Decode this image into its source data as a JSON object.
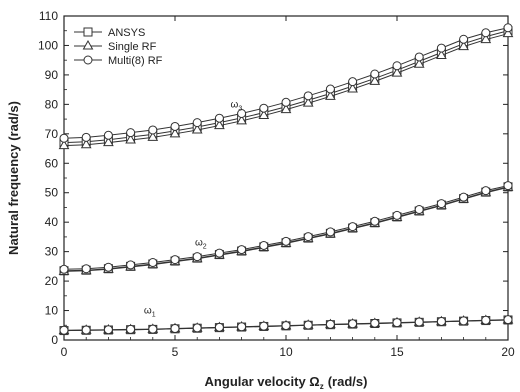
{
  "chart_data": {
    "type": "line",
    "xlabel": "Angular velocity Ω",
    "xlabel_sub": "z",
    "xlabel_unit": "(rad/s)",
    "ylabel": "Natural frequency (rad/s)",
    "xlim": [
      0,
      20
    ],
    "ylim": [
      0,
      110
    ],
    "xticks": [
      0,
      5,
      10,
      15,
      20
    ],
    "yticks": [
      0,
      10,
      20,
      30,
      40,
      50,
      60,
      70,
      80,
      90,
      100,
      110
    ],
    "grid": false,
    "legend_position": "top-left",
    "x": [
      0,
      1,
      2,
      3,
      4,
      5,
      6,
      7,
      8,
      9,
      10,
      11,
      12,
      13,
      14,
      15,
      16,
      17,
      18,
      19,
      20
    ],
    "series": [
      {
        "name": "ANSYS",
        "marker": "square",
        "groups": [
          {
            "y": [
              3.2,
              3.3,
              3.4,
              3.5,
              3.6,
              3.8,
              4.0,
              4.2,
              4.4,
              4.6,
              4.8,
              5.0,
              5.2,
              5.4,
              5.6,
              5.8,
              6.0,
              6.2,
              6.4,
              6.6,
              6.8
            ]
          },
          {
            "y": [
              23.5,
              23.7,
              24.2,
              25.0,
              25.8,
              26.8,
              27.8,
              29.0,
              30.2,
              31.6,
              33.0,
              34.6,
              36.2,
              38.0,
              39.8,
              41.8,
              43.8,
              45.8,
              48.0,
              50.2,
              52.0
            ]
          },
          {
            "y": [
              67.0,
              67.3,
              68.0,
              68.9,
              69.8,
              71.0,
              72.3,
              73.8,
              75.4,
              77.2,
              79.2,
              81.4,
              83.7,
              86.2,
              88.8,
              91.6,
              94.6,
              97.6,
              100.6,
              103.0,
              105.0
            ]
          }
        ]
      },
      {
        "name": "Single  RF",
        "marker": "triangle",
        "groups": [
          {
            "y": [
              3.2,
              3.3,
              3.4,
              3.5,
              3.6,
              3.8,
              4.0,
              4.2,
              4.4,
              4.6,
              4.8,
              5.0,
              5.2,
              5.4,
              5.6,
              5.8,
              6.0,
              6.2,
              6.4,
              6.6,
              6.8
            ]
          },
          {
            "y": [
              23.3,
              23.5,
              24.0,
              24.8,
              25.6,
              26.6,
              27.6,
              28.8,
              30.0,
              31.4,
              32.8,
              34.4,
              36.0,
              37.8,
              39.6,
              41.6,
              43.6,
              45.6,
              47.8,
              50.0,
              51.8
            ]
          },
          {
            "y": [
              66.0,
              66.3,
              67.0,
              67.9,
              68.8,
              70.0,
              71.3,
              72.8,
              74.4,
              76.2,
              78.2,
              80.4,
              82.7,
              85.2,
              87.8,
              90.6,
              93.6,
              96.6,
              99.6,
              102.0,
              104.0
            ]
          }
        ]
      },
      {
        "name": "Multi(8) RF",
        "marker": "circle",
        "groups": [
          {
            "y": [
              3.3,
              3.4,
              3.5,
              3.6,
              3.7,
              3.9,
              4.1,
              4.3,
              4.5,
              4.7,
              4.9,
              5.1,
              5.3,
              5.5,
              5.7,
              5.9,
              6.1,
              6.3,
              6.5,
              6.7,
              6.9
            ]
          },
          {
            "y": [
              24.0,
              24.2,
              24.7,
              25.5,
              26.3,
              27.3,
              28.3,
              29.5,
              30.7,
              32.1,
              33.5,
              35.1,
              36.7,
              38.5,
              40.3,
              42.3,
              44.3,
              46.3,
              48.5,
              50.7,
              52.4
            ]
          },
          {
            "y": [
              68.5,
              68.8,
              69.5,
              70.4,
              71.3,
              72.5,
              73.8,
              75.3,
              76.9,
              78.7,
              80.7,
              82.9,
              85.2,
              87.7,
              90.3,
              93.1,
              96.1,
              99.1,
              102.1,
              104.3,
              106.0
            ]
          }
        ]
      }
    ],
    "annotations": [
      {
        "text": "ω",
        "sub": "3",
        "x": 7.5,
        "y": 79
      },
      {
        "text": "ω",
        "sub": "2",
        "x": 5.9,
        "y": 32
      },
      {
        "text": "ω",
        "sub": "1",
        "x": 3.6,
        "y": 9
      }
    ]
  },
  "colors": {
    "line": "#333333",
    "axis": "#222222",
    "background": "#ffffff"
  }
}
